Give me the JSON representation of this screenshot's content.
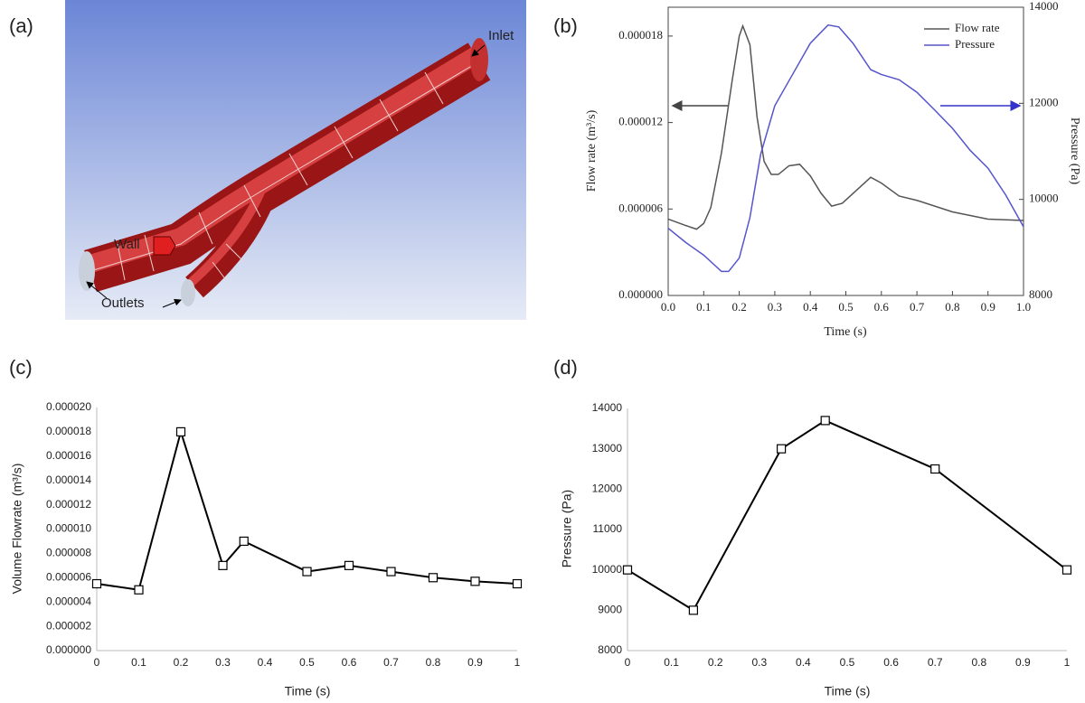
{
  "panel_a": {
    "panel_label": "(a)",
    "inlet": "Inlet",
    "wall": "Wall",
    "outlets": "Outlets"
  },
  "chart_data": [
    {
      "panel_label": "(b)",
      "type": "line",
      "xlabel": "Time (s)",
      "ylabel": "Flow rate (m³/s)",
      "y2label": "Pressure (Pa)",
      "xlim": [
        0,
        1
      ],
      "xticks": [
        {
          "value": 0,
          "label": "0.0"
        },
        0.1,
        0.2,
        0.3,
        0.4,
        0.5,
        0.6,
        0.7,
        0.8,
        0.9,
        {
          "value": 1,
          "label": "1.0"
        }
      ],
      "ylim": [
        0,
        2e-05
      ],
      "yticks": [
        {
          "value": 0,
          "label": "0.000000"
        },
        6e-06,
        1.2e-05,
        1.8e-05
      ],
      "y2lim": [
        8000,
        14000
      ],
      "y2ticks": [
        8000,
        10000,
        12000,
        14000
      ],
      "frame": true,
      "legend": "upper right",
      "series": [
        {
          "name": "Flow rate",
          "color": "#555555",
          "x": [
            0,
            0.05,
            0.08,
            0.1,
            0.12,
            0.15,
            0.18,
            0.2,
            0.21,
            0.23,
            0.25,
            0.27,
            0.29,
            0.31,
            0.34,
            0.37,
            0.4,
            0.43,
            0.46,
            0.49,
            0.53,
            0.57,
            0.6,
            0.65,
            0.7,
            0.8,
            0.9,
            1
          ],
          "values": [
            5.3e-06,
            4.85e-06,
            4.6e-06,
            5e-06,
            6.1e-06,
            9.9e-06,
            1.49e-05,
            1.8e-05,
            1.87e-05,
            1.74e-05,
            1.24e-05,
            9.3e-06,
            8.4e-06,
            8.4e-06,
            9e-06,
            9.1e-06,
            8.3e-06,
            7.1e-06,
            6.2e-06,
            6.4e-06,
            7.3e-06,
            8.2e-06,
            7.8e-06,
            6.9e-06,
            6.6e-06,
            5.8e-06,
            5.3e-06,
            5.2e-06
          ]
        },
        {
          "name": "Pressure",
          "color": "#5555cc",
          "axis": "y2",
          "x": [
            0,
            0.05,
            0.1,
            0.15,
            0.17,
            0.2,
            0.23,
            0.26,
            0.3,
            0.35,
            0.4,
            0.45,
            0.48,
            0.52,
            0.57,
            0.6,
            0.65,
            0.7,
            0.75,
            0.8,
            0.85,
            0.9,
            0.95,
            1
          ],
          "values": [
            9400,
            9100,
            8840,
            8500,
            8500,
            8780,
            9620,
            10930,
            11950,
            12600,
            13250,
            13630,
            13590,
            13250,
            12700,
            12600,
            12490,
            12230,
            11860,
            11480,
            11020,
            10650,
            10090,
            9430
          ]
        }
      ]
    },
    {
      "panel_label": "(c)",
      "type": "line",
      "xlabel": "Time (s)",
      "ylabel": "Volume Flowrate (m³/s)",
      "xlim": [
        0,
        1
      ],
      "xticks": [
        0,
        0.1,
        0.2,
        0.3,
        0.4,
        0.5,
        0.6,
        0.7,
        0.8,
        0.9,
        1
      ],
      "ylim": [
        0,
        2e-05
      ],
      "yticks": [
        {
          "value": 0,
          "label": "0.000000"
        },
        2e-06,
        4e-06,
        6e-06,
        8e-06,
        {
          "value": 1e-05,
          "label": "0.000010"
        },
        1.2e-05,
        1.4e-05,
        1.6e-05,
        1.8e-05,
        {
          "value": 2e-05,
          "label": "0.000020"
        }
      ],
      "frame": false,
      "marker": "square",
      "series": [
        {
          "color": "#000000",
          "x": [
            0,
            0.1,
            0.2,
            0.3,
            0.35,
            0.5,
            0.6,
            0.7,
            0.8,
            0.9,
            1
          ],
          "values": [
            5.5e-06,
            5e-06,
            1.8e-05,
            7e-06,
            9e-06,
            6.5e-06,
            7e-06,
            6.5e-06,
            6e-06,
            5.7e-06,
            5.5e-06
          ]
        }
      ]
    },
    {
      "panel_label": "(d)",
      "type": "line",
      "xlabel": "Time (s)",
      "ylabel": "Pressure (Pa)",
      "xlim": [
        0,
        1
      ],
      "xticks": [
        0,
        0.1,
        0.2,
        0.3,
        0.4,
        0.5,
        0.6,
        0.7,
        0.8,
        0.9,
        1
      ],
      "ylim": [
        8000,
        14000
      ],
      "yticks": [
        8000,
        9000,
        10000,
        11000,
        12000,
        13000,
        14000
      ],
      "frame": false,
      "marker": "square",
      "series": [
        {
          "color": "#000000",
          "x": [
            0,
            0.15,
            0.35,
            0.45,
            0.7,
            1
          ],
          "values": [
            10000,
            9000,
            13000,
            13700,
            12500,
            10000
          ]
        }
      ]
    }
  ]
}
